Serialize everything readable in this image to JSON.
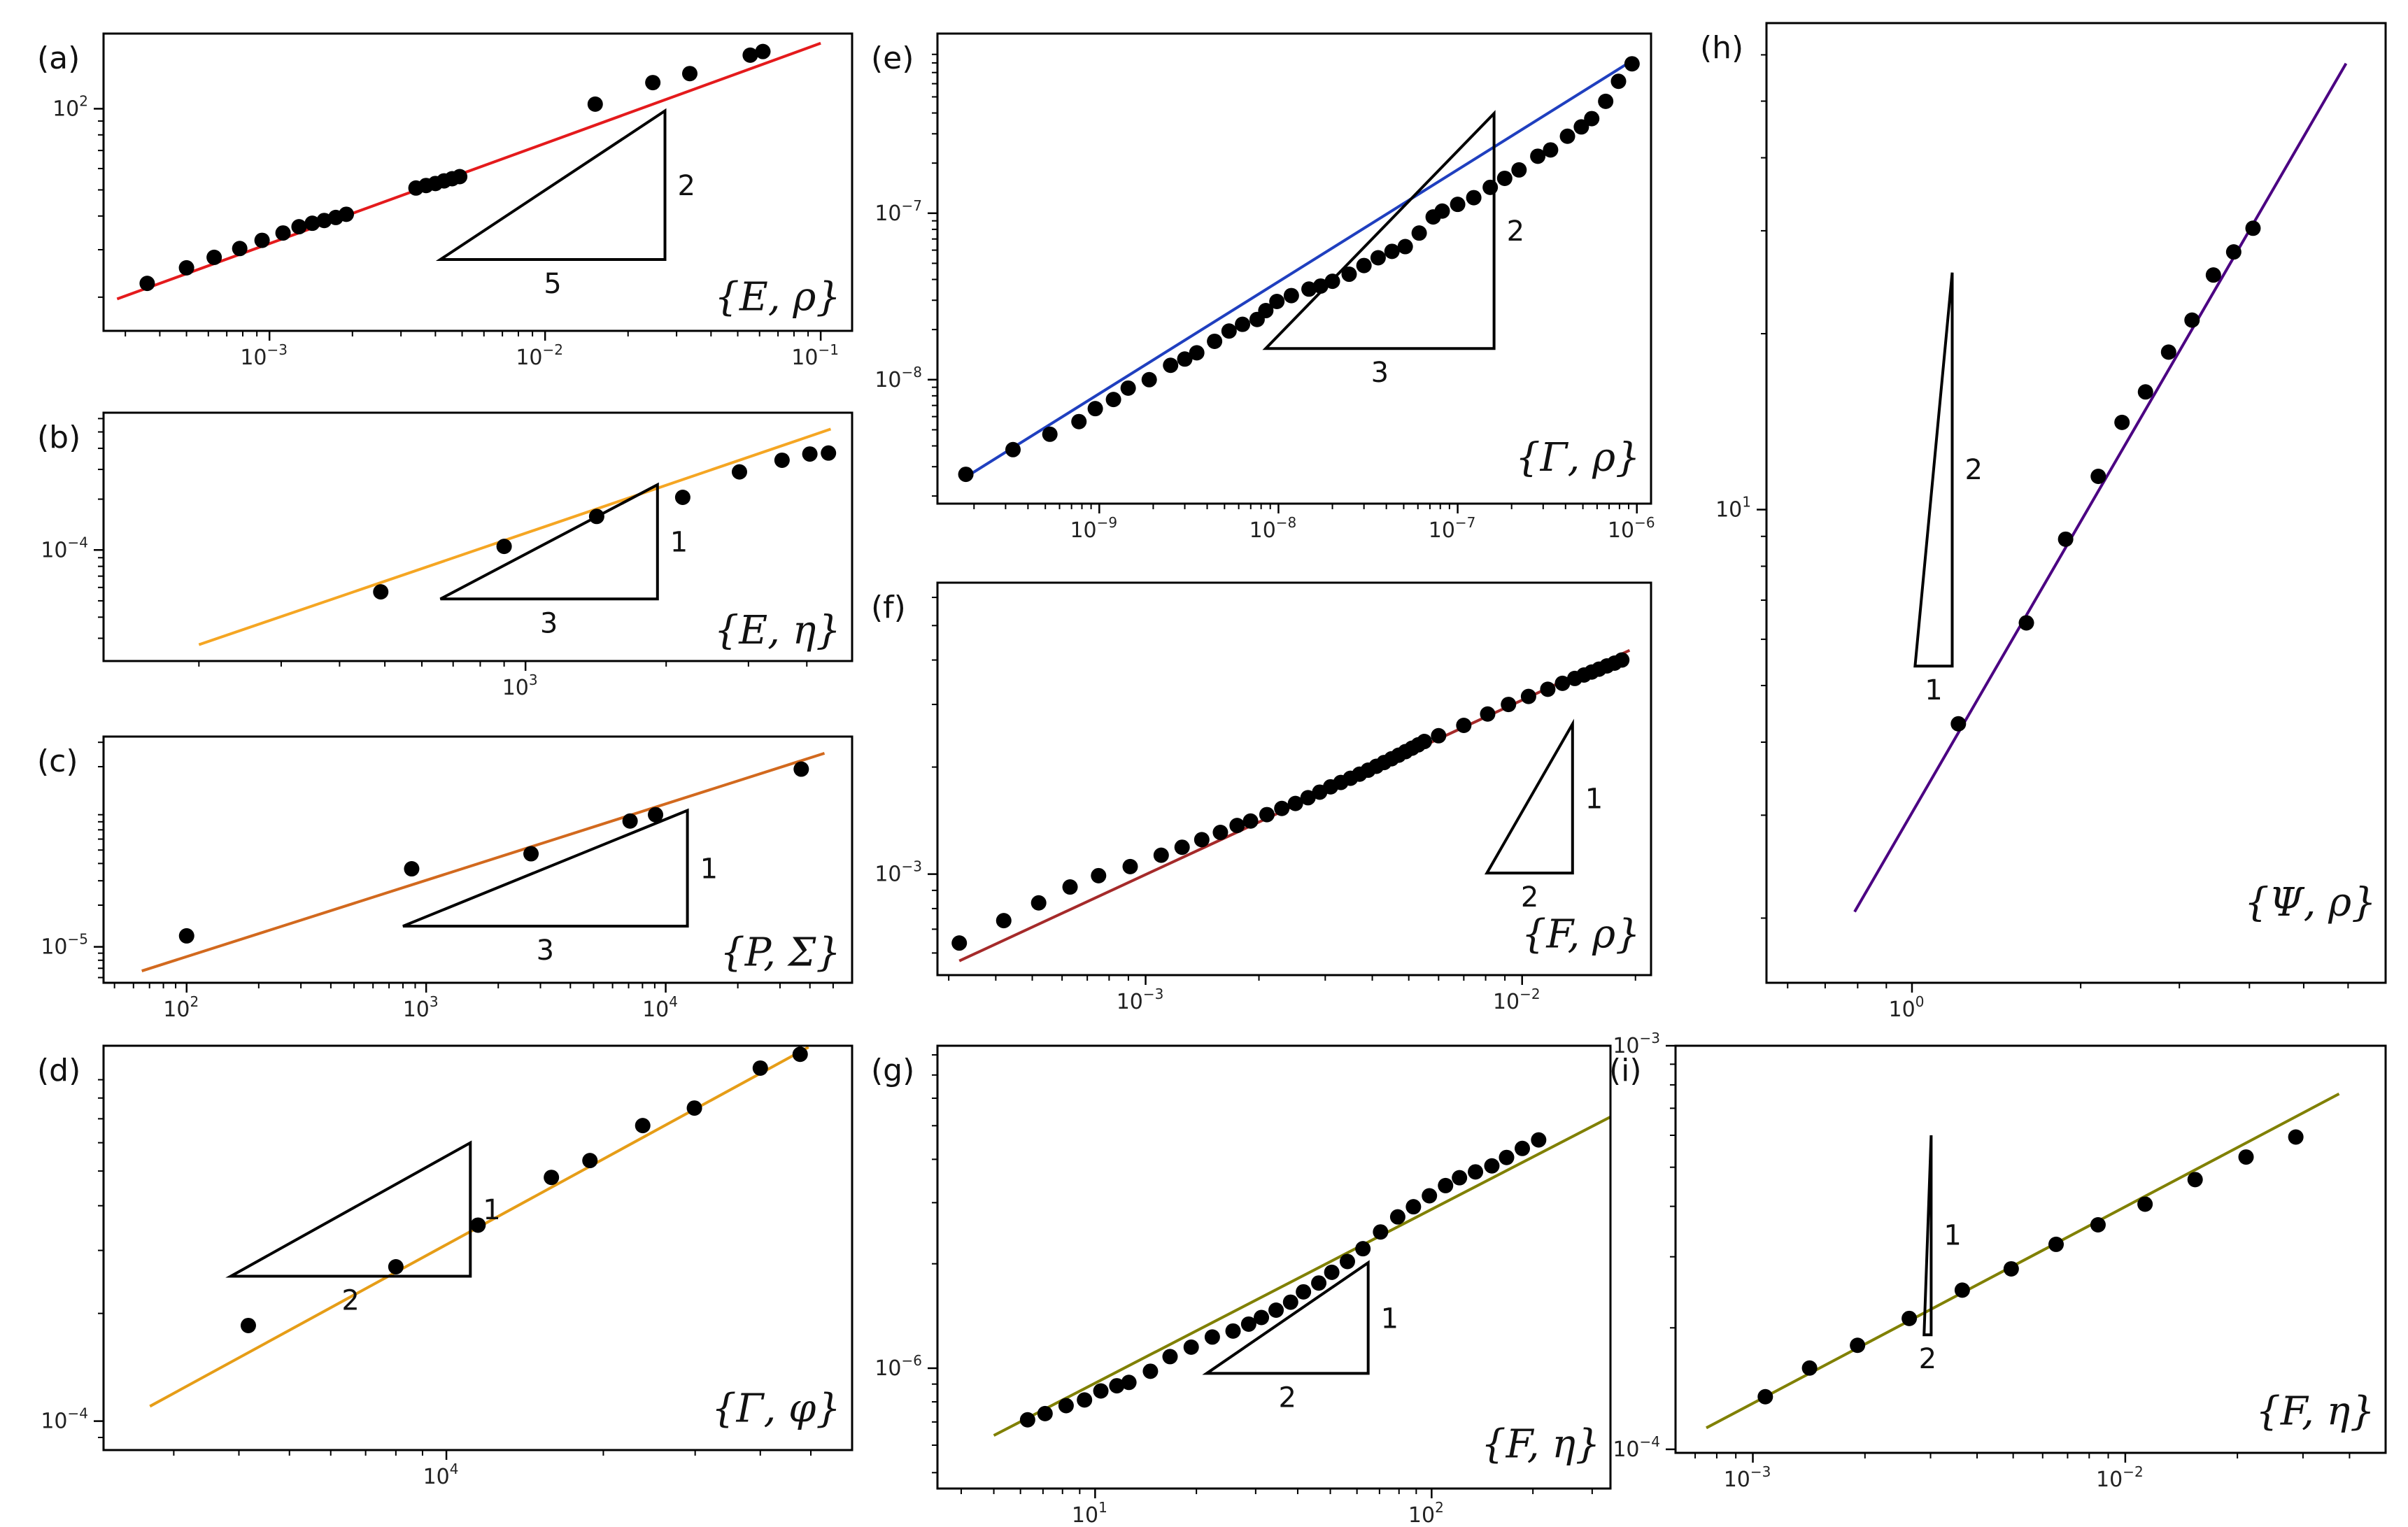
{
  "chart_data": [
    {
      "panel": "(a)",
      "type": "scatter",
      "label": "{E, ρ}",
      "line_color": "#e41a1c",
      "xlog": true,
      "ylog": true,
      "xlim": [
        0.00025,
        0.13
      ],
      "ylim": [
        15,
        190
      ],
      "xticks": [
        {
          "v": 0.001,
          "b": "10",
          "e": "−3"
        },
        {
          "v": 0.01,
          "b": "10",
          "e": "−2"
        },
        {
          "v": 0.1,
          "b": "10",
          "e": "−1"
        }
      ],
      "yticks": [
        {
          "v": 100,
          "b": "10",
          "e": "2"
        }
      ],
      "fit": {
        "x": [
          0.00028,
          0.1
        ],
        "y": [
          19.7,
          175
        ]
      },
      "x": [
        0.00036,
        0.0005,
        0.00063,
        0.00078,
        0.00094,
        0.00112,
        0.00128,
        0.00143,
        0.00158,
        0.00174,
        0.0019,
        0.0034,
        0.0037,
        0.004,
        0.0043,
        0.0046,
        0.0049,
        0.0152,
        0.0246,
        0.0335,
        0.0555,
        0.0617
      ],
      "y": [
        22.5,
        25.7,
        28.1,
        30.3,
        32.5,
        34.6,
        36.5,
        37.6,
        38.5,
        39.5,
        40.6,
        50.8,
        51.9,
        52.8,
        54.0,
        55.0,
        56.0,
        104,
        125,
        135,
        158,
        163
      ],
      "slope_rise": "2",
      "slope_run": "5"
    },
    {
      "panel": "(b)",
      "type": "scatter",
      "label": "{E, η}",
      "line_color": "#f5a623",
      "xlog": true,
      "ylog": true,
      "xlim": [
        125,
        5000
      ],
      "ylim": [
        2.2e-05,
        0.00065
      ],
      "xticks": [
        {
          "v": 1000,
          "b": "10",
          "e": "3"
        }
      ],
      "yticks": [
        {
          "v": 0.0001,
          "b": "10",
          "e": "−4"
        }
      ],
      "fit": {
        "x": [
          200,
          4500
        ],
        "y": [
          2.75e-05,
          0.00052
        ]
      },
      "x": [
        490,
        900,
        1420,
        2170,
        2870,
        3540,
        4060,
        4450
      ],
      "y": [
        5.65e-05,
        0.000105,
        0.000158,
        0.000205,
        0.00029,
        0.00034,
        0.00037,
        0.000375
      ],
      "slope_rise": "1",
      "slope_run": "3"
    },
    {
      "panel": "(c)",
      "type": "scatter",
      "label": "{P, Σ}",
      "line_color": "#d2691e",
      "xlog": true,
      "ylog": true,
      "xlim": [
        45,
        60000
      ],
      "ylim": [
        5.5e-06,
        0.00033
      ],
      "xticks": [
        {
          "v": 100,
          "b": "10",
          "e": "2"
        },
        {
          "v": 1000,
          "b": "10",
          "e": "3"
        },
        {
          "v": 10000,
          "b": "10",
          "e": "4"
        }
      ],
      "yticks": [
        {
          "v": 1e-05,
          "b": "10",
          "e": "−5"
        }
      ],
      "fit": {
        "x": [
          65,
          46000
        ],
        "y": [
          6.7e-06,
          0.00025
        ]
      },
      "x": [
        100,
        870,
        2740,
        7100,
        9070,
        36800
      ],
      "y": [
        1.2e-05,
        3.66e-05,
        4.7e-05,
        8.1e-05,
        9e-05,
        0.000192
      ],
      "slope_rise": "1",
      "slope_run": "3"
    },
    {
      "panel": "(d)",
      "type": "scatter",
      "label": "{Γ, φ}",
      "line_color": "#e69d17",
      "xlog": true,
      "ylog": true,
      "xlim": [
        2200,
        60000
      ],
      "ylim": [
        8.3e-05,
        0.00112
      ],
      "xticks": [
        {
          "v": 10000,
          "b": "10",
          "e": "4"
        }
      ],
      "yticks": [
        {
          "v": 0.0001,
          "b": "10",
          "e": "−4"
        }
      ],
      "fit": {
        "x": [
          2700,
          49500
        ],
        "y": [
          0.00011,
          0.00111
        ]
      },
      "x": [
        4170,
        8000,
        11500,
        15900,
        18850,
        23800,
        29900,
        40000,
        47700
      ],
      "y": [
        0.000185,
        0.00027,
        0.000353,
        0.00048,
        0.000535,
        0.00067,
        0.00075,
        0.00097,
        0.00106
      ],
      "slope_rise": "1",
      "slope_run": "2"
    },
    {
      "panel": "(e)",
      "type": "scatter",
      "label": "{Γ, ρ}",
      "line_color": "#1f3fbf",
      "xlog": true,
      "ylog": true,
      "xlim": [
        1.25e-10,
        1.2e-06
      ],
      "ylim": [
        1.8e-09,
        1.2e-06
      ],
      "xticks": [
        {
          "v": 1e-09,
          "b": "10",
          "e": "−9"
        },
        {
          "v": 1e-08,
          "b": "10",
          "e": "−8"
        },
        {
          "v": 1e-07,
          "b": "10",
          "e": "−7"
        },
        {
          "v": 1e-06,
          "b": "10",
          "e": "−6"
        }
      ],
      "yticks": [
        {
          "v": 1e-08,
          "b": "10",
          "e": "−8"
        },
        {
          "v": 1e-07,
          "b": "10",
          "e": "−7"
        }
      ],
      "fit": {
        "x": [
          1.8e-10,
          9.5e-07
        ],
        "y": [
          2.6e-09,
          8.3e-07
        ]
      },
      "x": [
        1.8e-10,
        3.3e-10,
        5.3e-10,
        7.7e-10,
        9.5e-10,
        1.2e-09,
        1.45e-09,
        1.9e-09,
        2.5e-09,
        3e-09,
        3.5e-09,
        4.4e-09,
        5.3e-09,
        6.3e-09,
        7.6e-09,
        8.5e-09,
        9.8e-09,
        1.18e-08,
        1.48e-08,
        1.72e-08,
        2e-08,
        2.48e-08,
        3e-08,
        3.6e-08,
        4.3e-08,
        5.1e-08,
        6.1e-08,
        7.3e-08,
        8.2e-08,
        1e-07,
        1.23e-07,
        1.52e-07,
        1.83e-07,
        2.2e-07,
        2.8e-07,
        3.3e-07,
        4.1e-07,
        4.9e-07,
        5.6e-07,
        6.7e-07,
        7.9e-07,
        9.4e-07
      ],
      "y": [
        2.7e-09,
        3.8e-09,
        4.7e-09,
        5.6e-09,
        6.7e-09,
        7.6e-09,
        8.9e-09,
        1e-08,
        1.22e-08,
        1.33e-08,
        1.45e-08,
        1.7e-08,
        1.96e-08,
        2.15e-08,
        2.3e-08,
        2.6e-08,
        2.95e-08,
        3.2e-08,
        3.5e-08,
        3.65e-08,
        3.9e-08,
        4.3e-08,
        4.85e-08,
        5.4e-08,
        5.9e-08,
        6.3e-08,
        7.6e-08,
        9.5e-08,
        1.03e-07,
        1.13e-07,
        1.24e-07,
        1.43e-07,
        1.62e-07,
        1.82e-07,
        2.2e-07,
        2.4e-07,
        2.9e-07,
        3.3e-07,
        3.7e-07,
        4.7e-07,
        6.2e-07,
        7.9e-07
      ],
      "slope_rise": "2",
      "slope_run": "3"
    },
    {
      "panel": "(f)",
      "type": "scatter",
      "label": "{F, ρ}",
      "line_color": "#a52a2a",
      "xlog": true,
      "ylog": true,
      "xlim": [
        0.00028,
        0.022
      ],
      "ylim": [
        0.00052,
        0.0066
      ],
      "xticks": [
        {
          "v": 0.001,
          "b": "10",
          "e": "−3"
        },
        {
          "v": 0.01,
          "b": "10",
          "e": "−2"
        }
      ],
      "yticks": [
        {
          "v": 0.001,
          "b": "10",
          "e": "−3"
        }
      ],
      "fit": {
        "x": [
          0.00032,
          0.0193
        ],
        "y": [
          0.00057,
          0.00426
        ]
      },
      "x": [
        0.00032,
        0.00042,
        0.00052,
        0.00063,
        0.00075,
        0.00091,
        0.0011,
        0.00125,
        0.00141,
        0.00158,
        0.00175,
        0.0019,
        0.0021,
        0.0023,
        0.0025,
        0.0027,
        0.0029,
        0.0031,
        0.0033,
        0.0035,
        0.0037,
        0.0039,
        0.0041,
        0.0043,
        0.0045,
        0.0047,
        0.0049,
        0.0051,
        0.0053,
        0.0055,
        0.006,
        0.007,
        0.0081,
        0.0092,
        0.0104,
        0.0117,
        0.0128,
        0.0138,
        0.0146,
        0.0153,
        0.016,
        0.0168,
        0.0176,
        0.0184
      ],
      "y": [
        0.00064,
        0.00074,
        0.00083,
        0.00092,
        0.00099,
        0.00105,
        0.00113,
        0.00119,
        0.00125,
        0.00131,
        0.00137,
        0.00141,
        0.00147,
        0.00153,
        0.00158,
        0.00164,
        0.0017,
        0.00176,
        0.00181,
        0.00186,
        0.00191,
        0.00196,
        0.00201,
        0.00206,
        0.00211,
        0.00216,
        0.00221,
        0.00226,
        0.00231,
        0.00236,
        0.00245,
        0.00262,
        0.00282,
        0.003,
        0.00316,
        0.00331,
        0.00344,
        0.00355,
        0.00363,
        0.0037,
        0.00377,
        0.00385,
        0.00392,
        0.004
      ],
      "slope_rise": "1",
      "slope_run": "2"
    },
    {
      "panel": "(g)",
      "type": "scatter",
      "label": "{F, η}",
      "line_color": "#808000",
      "xlog": true,
      "ylog": true,
      "xlim": [
        3.4,
        340
      ],
      "ylim": [
        4.5e-07,
        8.5e-06
      ],
      "xticks": [
        {
          "v": 10,
          "b": "10",
          "e": "1"
        },
        {
          "v": 100,
          "b": "10",
          "e": "2"
        }
      ],
      "yticks": [
        {
          "v": 1e-06,
          "b": "10",
          "e": "−6"
        }
      ],
      "fit": {
        "x": [
          5,
          340
        ],
        "y": [
          6.4e-07,
          5.3e-06
        ]
      },
      "x": [
        6.3,
        7.1,
        8.2,
        9.3,
        10.4,
        11.6,
        12.6,
        14.6,
        16.7,
        19.3,
        22.3,
        25.7,
        28.6,
        31.2,
        34.5,
        38.1,
        41.6,
        46.2,
        50.5,
        56.2,
        62.5,
        70.5,
        79.3,
        88.3,
        98.5,
        110,
        121,
        135,
        151,
        167,
        186,
        208
      ],
      "y": [
        7.1e-07,
        7.4e-07,
        7.8e-07,
        8.1e-07,
        8.6e-07,
        8.9e-07,
        9.1e-07,
        9.8e-07,
        1.08e-06,
        1.15e-06,
        1.23e-06,
        1.28e-06,
        1.34e-06,
        1.4e-06,
        1.47e-06,
        1.55e-06,
        1.66e-06,
        1.76e-06,
        1.89e-06,
        2.03e-06,
        2.21e-06,
        2.47e-06,
        2.73e-06,
        2.92e-06,
        3.14e-06,
        3.36e-06,
        3.54e-06,
        3.68e-06,
        3.83e-06,
        4.05e-06,
        4.3e-06,
        4.55e-06
      ],
      "slope_rise": "1",
      "slope_run": "2"
    },
    {
      "panel": "(h)",
      "type": "scatter",
      "label": "{Ψ, ρ}",
      "line_color": "#4b0082",
      "xlog": true,
      "ylog": true,
      "xlim": [
        0.55,
        7.0
      ],
      "ylim": [
        1.55,
        68
      ],
      "xticks": [
        {
          "v": 1,
          "b": "10",
          "e": "0"
        }
      ],
      "yticks": [
        {
          "v": 10,
          "b": "10",
          "e": "1"
        }
      ],
      "fit": {
        "x": [
          0.79,
          5.95
        ],
        "y": [
          2.05,
          58
        ]
      },
      "x": [
        1.21,
        1.6,
        1.88,
        2.15,
        2.37,
        2.61,
        2.87,
        3.16,
        3.45,
        3.75,
        4.06
      ],
      "y": [
        4.3,
        6.4,
        8.9,
        11.4,
        14.1,
        15.9,
        18.6,
        21.1,
        25.2,
        27.6,
        30.3
      ],
      "slope_rise": "2",
      "slope_run": "1"
    },
    {
      "panel": "(i)",
      "type": "scatter",
      "label": "{F, η}",
      "line_color": "#808000",
      "xlog": true,
      "ylog": true,
      "xlim": [
        0.00062,
        0.05
      ],
      "ylim": [
        9.8e-05,
        0.001
      ],
      "xticks": [
        {
          "v": 0.001,
          "b": "10",
          "e": "−3"
        },
        {
          "v": 0.01,
          "b": "10",
          "e": "−2"
        }
      ],
      "yticks": [
        {
          "v": 0.0001,
          "b": "10",
          "e": "−4"
        },
        {
          "v": 0.001,
          "b": "10",
          "e": "−3"
        }
      ],
      "fit": {
        "x": [
          0.00075,
          0.0375
        ],
        "y": [
          0.000113,
          0.00076
        ]
      },
      "x": [
        0.00108,
        0.00142,
        0.00191,
        0.00263,
        0.00365,
        0.00494,
        0.00652,
        0.00845,
        0.0113,
        0.0154,
        0.0211,
        0.0287
      ],
      "y": [
        0.000135,
        0.000159,
        0.000181,
        0.000211,
        0.000248,
        0.00028,
        0.000322,
        0.00036,
        0.000405,
        0.000466,
        0.00053,
        0.000594
      ],
      "slope_rise": "1",
      "slope_run": "2"
    }
  ]
}
